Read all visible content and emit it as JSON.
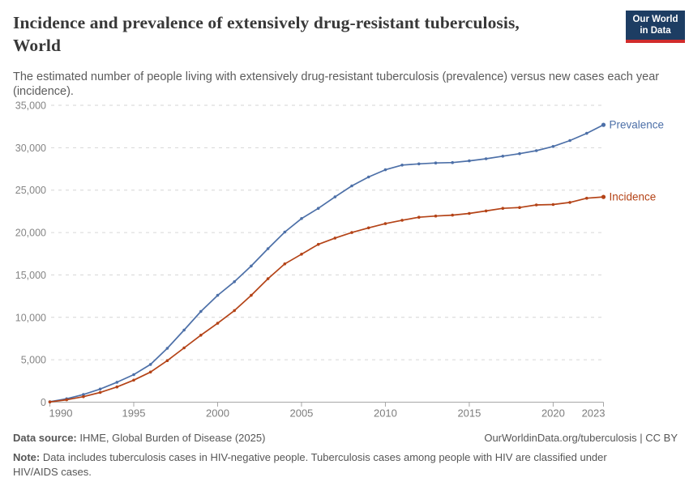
{
  "header": {
    "title_line1": "Incidence and prevalence of extensively drug-resistant tuberculosis,",
    "title_line2": "World",
    "subtitle": "The estimated number of people living with extensively drug-resistant tuberculosis (prevalence) versus new cases each year (incidence).",
    "logo": {
      "line1": "Our World",
      "line2": "in Data",
      "bg_color": "#1d3d63",
      "bar_color": "#d12c2c"
    }
  },
  "chart_data": {
    "type": "line",
    "title": "Incidence and prevalence of extensively drug-resistant tuberculosis, World",
    "xlabel": "",
    "ylabel": "",
    "xlim": [
      1990,
      2023
    ],
    "ylim": [
      0,
      35000
    ],
    "grid": "horizontal-dashed",
    "legend": "line-end-labels",
    "marker": "dot",
    "x": [
      1990,
      1991,
      1992,
      1993,
      1994,
      1995,
      1996,
      1997,
      1998,
      1999,
      2000,
      2001,
      2002,
      2003,
      2004,
      2005,
      2006,
      2007,
      2008,
      2009,
      2010,
      2011,
      2012,
      2013,
      2014,
      2015,
      2016,
      2017,
      2018,
      2019,
      2020,
      2021,
      2022,
      2023
    ],
    "series": [
      {
        "name": "Prevalence",
        "color": "#4d70a8",
        "values": [
          50,
          400,
          900,
          1550,
          2350,
          3250,
          4450,
          6350,
          8500,
          10700,
          12600,
          14200,
          16050,
          18100,
          20050,
          21650,
          22850,
          24200,
          25500,
          26550,
          27400,
          27950,
          28100,
          28200,
          28250,
          28450,
          28700,
          29000,
          29300,
          29650,
          30150,
          30850,
          31700,
          32700
        ]
      },
      {
        "name": "Incidence",
        "color": "#b44317",
        "values": [
          30,
          280,
          650,
          1150,
          1800,
          2600,
          3550,
          4900,
          6400,
          7900,
          9300,
          10800,
          12600,
          14550,
          16300,
          17450,
          18600,
          19350,
          20000,
          20550,
          21050,
          21450,
          21800,
          21950,
          22050,
          22250,
          22550,
          22850,
          22950,
          23250,
          23300,
          23550,
          24050,
          24200
        ]
      }
    ],
    "y_ticks": [
      {
        "value": 0,
        "label": "0"
      },
      {
        "value": 5000,
        "label": "5,000"
      },
      {
        "value": 10000,
        "label": "10,000"
      },
      {
        "value": 15000,
        "label": "15,000"
      },
      {
        "value": 20000,
        "label": "20,000"
      },
      {
        "value": 25000,
        "label": "25,000"
      },
      {
        "value": 30000,
        "label": "30,000"
      },
      {
        "value": 35000,
        "label": "35,000"
      }
    ],
    "x_ticks": [
      {
        "value": 1990,
        "label": "1990"
      },
      {
        "value": 1995,
        "label": "1995"
      },
      {
        "value": 2000,
        "label": "2000"
      },
      {
        "value": 2005,
        "label": "2005"
      },
      {
        "value": 2010,
        "label": "2010"
      },
      {
        "value": 2015,
        "label": "2015"
      },
      {
        "value": 2020,
        "label": "2020"
      },
      {
        "value": 2023,
        "label": "2023"
      }
    ]
  },
  "footer": {
    "source_label": "Data source:",
    "source_text": " IHME, Global Burden of Disease (2025)",
    "link_text": "OurWorldinData.org/tuberculosis | CC BY",
    "note_label": "Note:",
    "note_text": " Data includes tuberculosis cases in HIV-negative people. Tuberculosis cases among people with HIV are classified under HIV/AIDS cases."
  }
}
